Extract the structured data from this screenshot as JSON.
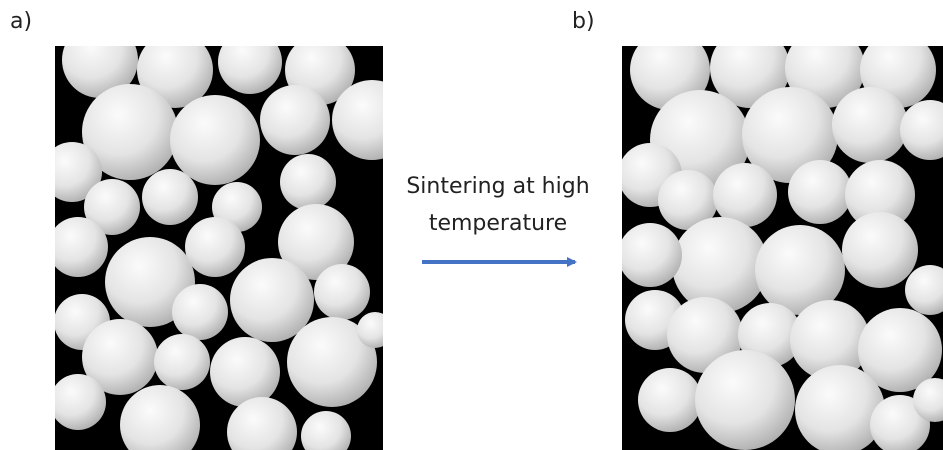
{
  "panels": [
    {
      "label": "a)"
    },
    {
      "label": "b)"
    }
  ],
  "arrow": {
    "label_lines": [
      "Sintering at high",
      "temperature"
    ]
  }
}
